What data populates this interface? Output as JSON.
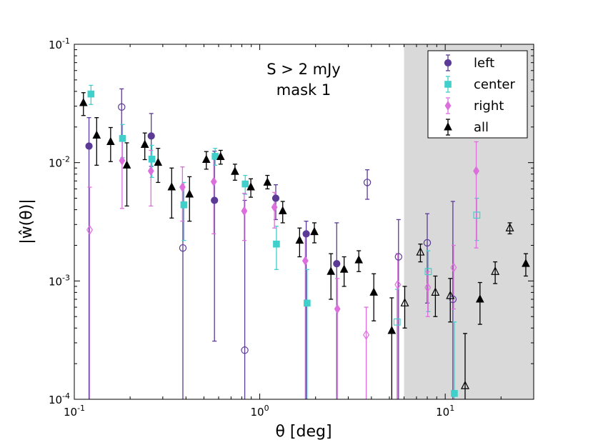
{
  "chart_data": {
    "type": "scatter",
    "xscale": "log",
    "yscale": "log",
    "xlim": [
      0.1,
      30
    ],
    "ylim": [
      0.0001,
      0.1
    ],
    "xlabel": "θ [deg]",
    "ylabel": "|ŵ(θ)|",
    "annotation": [
      "S > 2 mJy",
      "mask 1"
    ],
    "shaded_region": {
      "x_from": 6,
      "x_to": 30,
      "color": "#d9d9d9"
    },
    "x_ticks": [
      {
        "base": "10",
        "exp": "-1",
        "value": 0.1
      },
      {
        "base": "10",
        "exp": "0",
        "value": 1
      },
      {
        "base": "10",
        "exp": "1",
        "value": 10
      }
    ],
    "y_ticks": [
      {
        "base": "10",
        "exp": "-4",
        "value": 0.0001
      },
      {
        "base": "10",
        "exp": "-3",
        "value": 0.001
      },
      {
        "base": "10",
        "exp": "-2",
        "value": 0.01
      },
      {
        "base": "10",
        "exp": "-1",
        "value": 0.1
      }
    ],
    "legend": {
      "position": "top-right"
    },
    "series": [
      {
        "name": "left",
        "color": "#5b3a96",
        "marker": "circle",
        "points": [
          {
            "x": 0.12,
            "y": 0.0138,
            "lo": 8e-05,
            "hi": 0.024,
            "filled": true
          },
          {
            "x": 0.18,
            "y": 0.0295,
            "lo": 0.0155,
            "hi": 0.042,
            "filled": false
          },
          {
            "x": 0.26,
            "y": 0.0168,
            "lo": 0.0093,
            "hi": 0.026,
            "filled": true
          },
          {
            "x": 0.385,
            "y": 0.0019,
            "lo": 8e-05,
            "hi": 0.0062,
            "filled": false
          },
          {
            "x": 0.57,
            "y": 0.0048,
            "lo": 0.00031,
            "hi": 0.0125,
            "filled": true
          },
          {
            "x": 0.83,
            "y": 0.00026,
            "lo": 8e-05,
            "hi": 0.0048,
            "filled": false
          },
          {
            "x": 1.22,
            "y": 0.005,
            "lo": 0.0033,
            "hi": 0.0065,
            "filled": true
          },
          {
            "x": 1.78,
            "y": 0.0025,
            "lo": 8e-05,
            "hi": 0.0032,
            "filled": true
          },
          {
            "x": 2.6,
            "y": 0.0014,
            "lo": 8e-05,
            "hi": 0.0031,
            "filled": true
          },
          {
            "x": 3.8,
            "y": 0.0068,
            "lo": 0.0049,
            "hi": 0.0087,
            "filled": false
          },
          {
            "x": 5.6,
            "y": 0.0016,
            "lo": 8e-05,
            "hi": 0.0033,
            "filled": false
          },
          {
            "x": 8.0,
            "y": 0.0021,
            "lo": 0.00065,
            "hi": 0.0037,
            "filled": false
          },
          {
            "x": 11.0,
            "y": 0.0007,
            "lo": 8e-05,
            "hi": 0.0047,
            "filled": false
          }
        ]
      },
      {
        "name": "center",
        "color": "#3fd0cc",
        "marker": "square",
        "points": [
          {
            "x": 0.123,
            "y": 0.038,
            "lo": 0.031,
            "hi": 0.045,
            "filled": true
          },
          {
            "x": 0.182,
            "y": 0.016,
            "lo": 0.011,
            "hi": 0.021,
            "filled": true
          },
          {
            "x": 0.262,
            "y": 0.0107,
            "lo": 0.0075,
            "hi": 0.014,
            "filled": true
          },
          {
            "x": 0.39,
            "y": 0.0044,
            "lo": 0.0022,
            "hi": 0.0068,
            "filled": true
          },
          {
            "x": 0.575,
            "y": 0.0113,
            "lo": 0.0095,
            "hi": 0.0132,
            "filled": true
          },
          {
            "x": 0.835,
            "y": 0.0066,
            "lo": 0.0054,
            "hi": 0.0078,
            "filled": true
          },
          {
            "x": 1.23,
            "y": 0.00205,
            "lo": 0.00125,
            "hi": 0.0029,
            "filled": true
          },
          {
            "x": 1.8,
            "y": 0.00065,
            "lo": 8e-05,
            "hi": 0.00125,
            "filled": true
          },
          {
            "x": 5.5,
            "y": 0.00045,
            "lo": 8e-05,
            "hi": 0.00085,
            "filled": false
          },
          {
            "x": 8.1,
            "y": 0.0012,
            "lo": 0.00055,
            "hi": 0.0018,
            "filled": false
          },
          {
            "x": 11.2,
            "y": 0.000112,
            "lo": 8e-05,
            "hi": 0.00045,
            "filled": true
          },
          {
            "x": 14.8,
            "y": 0.0036,
            "lo": 0.0022,
            "hi": 0.005,
            "filled": false
          }
        ]
      },
      {
        "name": "right",
        "color": "#dd6fdd",
        "marker": "diamond",
        "points": [
          {
            "x": 0.121,
            "y": 0.0027,
            "lo": 8e-05,
            "hi": 0.0062,
            "filled": false
          },
          {
            "x": 0.181,
            "y": 0.0104,
            "lo": 0.0041,
            "hi": 0.0165,
            "filled": true
          },
          {
            "x": 0.259,
            "y": 0.0085,
            "lo": 0.0043,
            "hi": 0.0127,
            "filled": true
          },
          {
            "x": 0.383,
            "y": 0.0062,
            "lo": 0.0032,
            "hi": 0.0092,
            "filled": true
          },
          {
            "x": 0.565,
            "y": 0.0069,
            "lo": 0.0025,
            "hi": 0.0113,
            "filled": true
          },
          {
            "x": 0.825,
            "y": 0.0039,
            "lo": 0.0022,
            "hi": 0.0055,
            "filled": true
          },
          {
            "x": 1.2,
            "y": 0.0042,
            "lo": 0.0028,
            "hi": 0.0056,
            "filled": true
          },
          {
            "x": 1.76,
            "y": 0.00148,
            "lo": 8e-05,
            "hi": 0.0024,
            "filled": true
          },
          {
            "x": 2.62,
            "y": 0.00058,
            "lo": 8e-05,
            "hi": 0.00105,
            "filled": true
          },
          {
            "x": 3.75,
            "y": 0.00035,
            "lo": 8e-05,
            "hi": 0.0006,
            "filled": false
          },
          {
            "x": 5.55,
            "y": 0.00093,
            "lo": 8e-05,
            "hi": 0.0017,
            "filled": false
          },
          {
            "x": 8.05,
            "y": 0.00088,
            "lo": 0.0005,
            "hi": 0.0012,
            "filled": false
          },
          {
            "x": 11.1,
            "y": 0.0013,
            "lo": 0.00058,
            "hi": 0.002,
            "filled": false
          },
          {
            "x": 14.7,
            "y": 0.0085,
            "lo": 0.0019,
            "hi": 0.015,
            "filled": true
          }
        ]
      },
      {
        "name": "all",
        "color": "#000000",
        "marker": "triangle",
        "points": [
          {
            "x": 0.112,
            "y": 0.032,
            "lo": 0.025,
            "hi": 0.039,
            "filled": true
          },
          {
            "x": 0.132,
            "y": 0.017,
            "lo": 0.0095,
            "hi": 0.024,
            "filled": true
          },
          {
            "x": 0.157,
            "y": 0.015,
            "lo": 0.0102,
            "hi": 0.0198,
            "filled": true
          },
          {
            "x": 0.192,
            "y": 0.0095,
            "lo": 0.0043,
            "hi": 0.0147,
            "filled": true
          },
          {
            "x": 0.24,
            "y": 0.0142,
            "lo": 0.0106,
            "hi": 0.0178,
            "filled": true
          },
          {
            "x": 0.283,
            "y": 0.01,
            "lo": 0.0068,
            "hi": 0.0132,
            "filled": true
          },
          {
            "x": 0.335,
            "y": 0.0062,
            "lo": 0.0034,
            "hi": 0.009,
            "filled": true
          },
          {
            "x": 0.418,
            "y": 0.0054,
            "lo": 0.0032,
            "hi": 0.0076,
            "filled": true
          },
          {
            "x": 0.515,
            "y": 0.0106,
            "lo": 0.0088,
            "hi": 0.0124,
            "filled": true
          },
          {
            "x": 0.615,
            "y": 0.0112,
            "lo": 0.0097,
            "hi": 0.0127,
            "filled": true
          },
          {
            "x": 0.735,
            "y": 0.0084,
            "lo": 0.0071,
            "hi": 0.0097,
            "filled": true
          },
          {
            "x": 0.895,
            "y": 0.0062,
            "lo": 0.0051,
            "hi": 0.0073,
            "filled": true
          },
          {
            "x": 1.1,
            "y": 0.0068,
            "lo": 0.006,
            "hi": 0.0078,
            "filled": true
          },
          {
            "x": 1.33,
            "y": 0.0039,
            "lo": 0.0031,
            "hi": 0.0047,
            "filled": true
          },
          {
            "x": 1.64,
            "y": 0.0022,
            "lo": 0.0016,
            "hi": 0.0028,
            "filled": true
          },
          {
            "x": 1.97,
            "y": 0.0026,
            "lo": 0.0021,
            "hi": 0.0031,
            "filled": true
          },
          {
            "x": 2.42,
            "y": 0.0012,
            "lo": 0.0007,
            "hi": 0.0017,
            "filled": true
          },
          {
            "x": 2.85,
            "y": 0.00125,
            "lo": 0.0009,
            "hi": 0.0016,
            "filled": true
          },
          {
            "x": 3.42,
            "y": 0.0015,
            "lo": 0.0012,
            "hi": 0.0018,
            "filled": true
          },
          {
            "x": 4.12,
            "y": 0.0008,
            "lo": 0.00046,
            "hi": 0.00115,
            "filled": true
          },
          {
            "x": 5.15,
            "y": 0.00038,
            "lo": 8e-05,
            "hi": 0.00072,
            "filled": true
          },
          {
            "x": 6.05,
            "y": 0.00065,
            "lo": 0.0004,
            "hi": 0.0009,
            "filled": false
          },
          {
            "x": 7.35,
            "y": 0.00175,
            "lo": 0.00145,
            "hi": 0.00205,
            "filled": false
          },
          {
            "x": 8.85,
            "y": 0.0008,
            "lo": 0.0005,
            "hi": 0.0011,
            "filled": false
          },
          {
            "x": 10.65,
            "y": 0.00075,
            "lo": 0.00045,
            "hi": 0.00105,
            "filled": false
          },
          {
            "x": 12.8,
            "y": 0.00013,
            "lo": 8e-05,
            "hi": 0.00036,
            "filled": false
          },
          {
            "x": 15.4,
            "y": 0.0007,
            "lo": 0.00043,
            "hi": 0.00097,
            "filled": true
          },
          {
            "x": 18.6,
            "y": 0.0012,
            "lo": 0.00095,
            "hi": 0.00145,
            "filled": false
          },
          {
            "x": 22.3,
            "y": 0.0028,
            "lo": 0.0025,
            "hi": 0.0031,
            "filled": false
          },
          {
            "x": 27.2,
            "y": 0.0014,
            "lo": 0.0011,
            "hi": 0.0017,
            "filled": true
          }
        ]
      }
    ]
  }
}
